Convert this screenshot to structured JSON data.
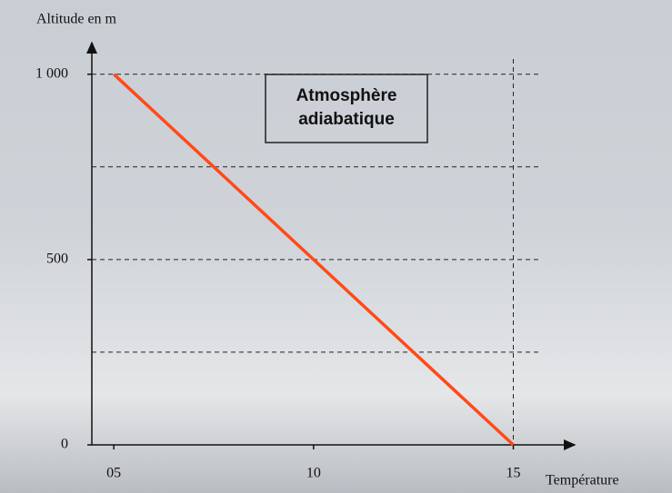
{
  "chart_data": {
    "type": "line",
    "y_label": "Altitude en m",
    "x_label": "Température",
    "annotation": [
      "Atmosphère",
      "adiabatique"
    ],
    "x": [
      5,
      15
    ],
    "series": [
      {
        "color": "#ff4a1a",
        "values": [
          1000,
          0
        ]
      }
    ],
    "xlim": [
      4.45,
      16.4
    ],
    "ylim": [
      0,
      1090
    ],
    "xticks": [
      {
        "value": 5,
        "label": "05"
      },
      10,
      15
    ],
    "yticks": [
      0,
      500,
      {
        "value": 1000,
        "label": "1 000"
      }
    ],
    "ygrid": [
      250,
      500,
      750,
      1000
    ],
    "xgrid": [
      15
    ]
  }
}
